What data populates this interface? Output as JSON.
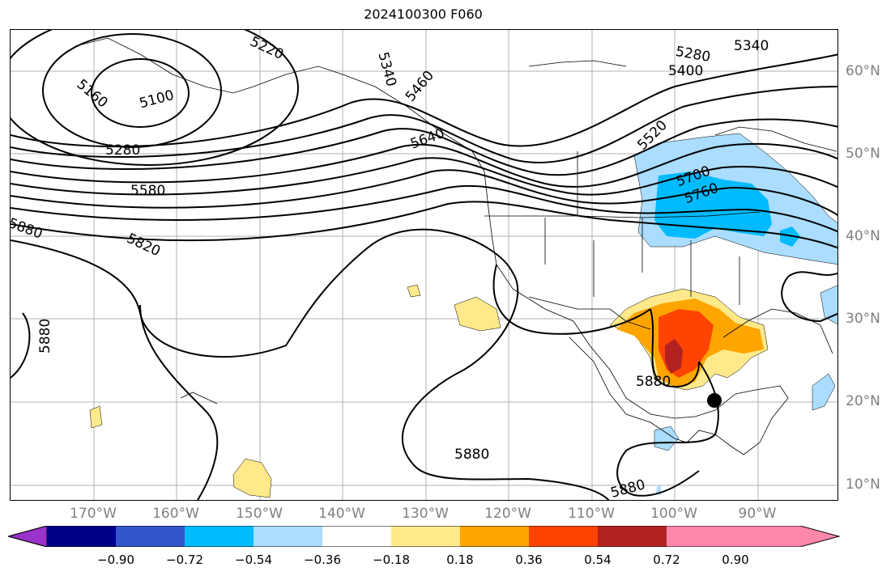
{
  "title": "2024100300 F060",
  "lon_labels": [
    "170°W",
    "160°W",
    "150°W",
    "140°W",
    "130°W",
    "120°W",
    "110°W",
    "100°W",
    "90°W"
  ],
  "lat_labels": [
    "60°N",
    "50°N",
    "40°N",
    "30°N",
    "20°N",
    "10°N"
  ],
  "contour_labels": [
    "5220",
    "5340",
    "5160",
    "5100",
    "5280",
    "5580",
    "5880",
    "5820",
    "5880",
    "5460",
    "5640",
    "5340",
    "5280",
    "5400",
    "5520",
    "5700",
    "5760",
    "5880",
    "5880",
    "5880"
  ],
  "colorbar": {
    "colors": [
      "#9933cc",
      "#000088",
      "#3355cc",
      "#00bbff",
      "#aaddff",
      "#ffffff",
      "#ffe98a",
      "#ffa500",
      "#ff4400",
      "#b22222",
      "#ff88aa"
    ],
    "tick_labels": [
      "−0.90",
      "−0.72",
      "−0.54",
      "−0.36",
      "−0.18",
      "0.18",
      "0.36",
      "0.54",
      "0.72",
      "0.90"
    ]
  },
  "colors": {
    "grid": "#b0b0b0",
    "axis_label": "#808080",
    "contour": "#000000"
  }
}
